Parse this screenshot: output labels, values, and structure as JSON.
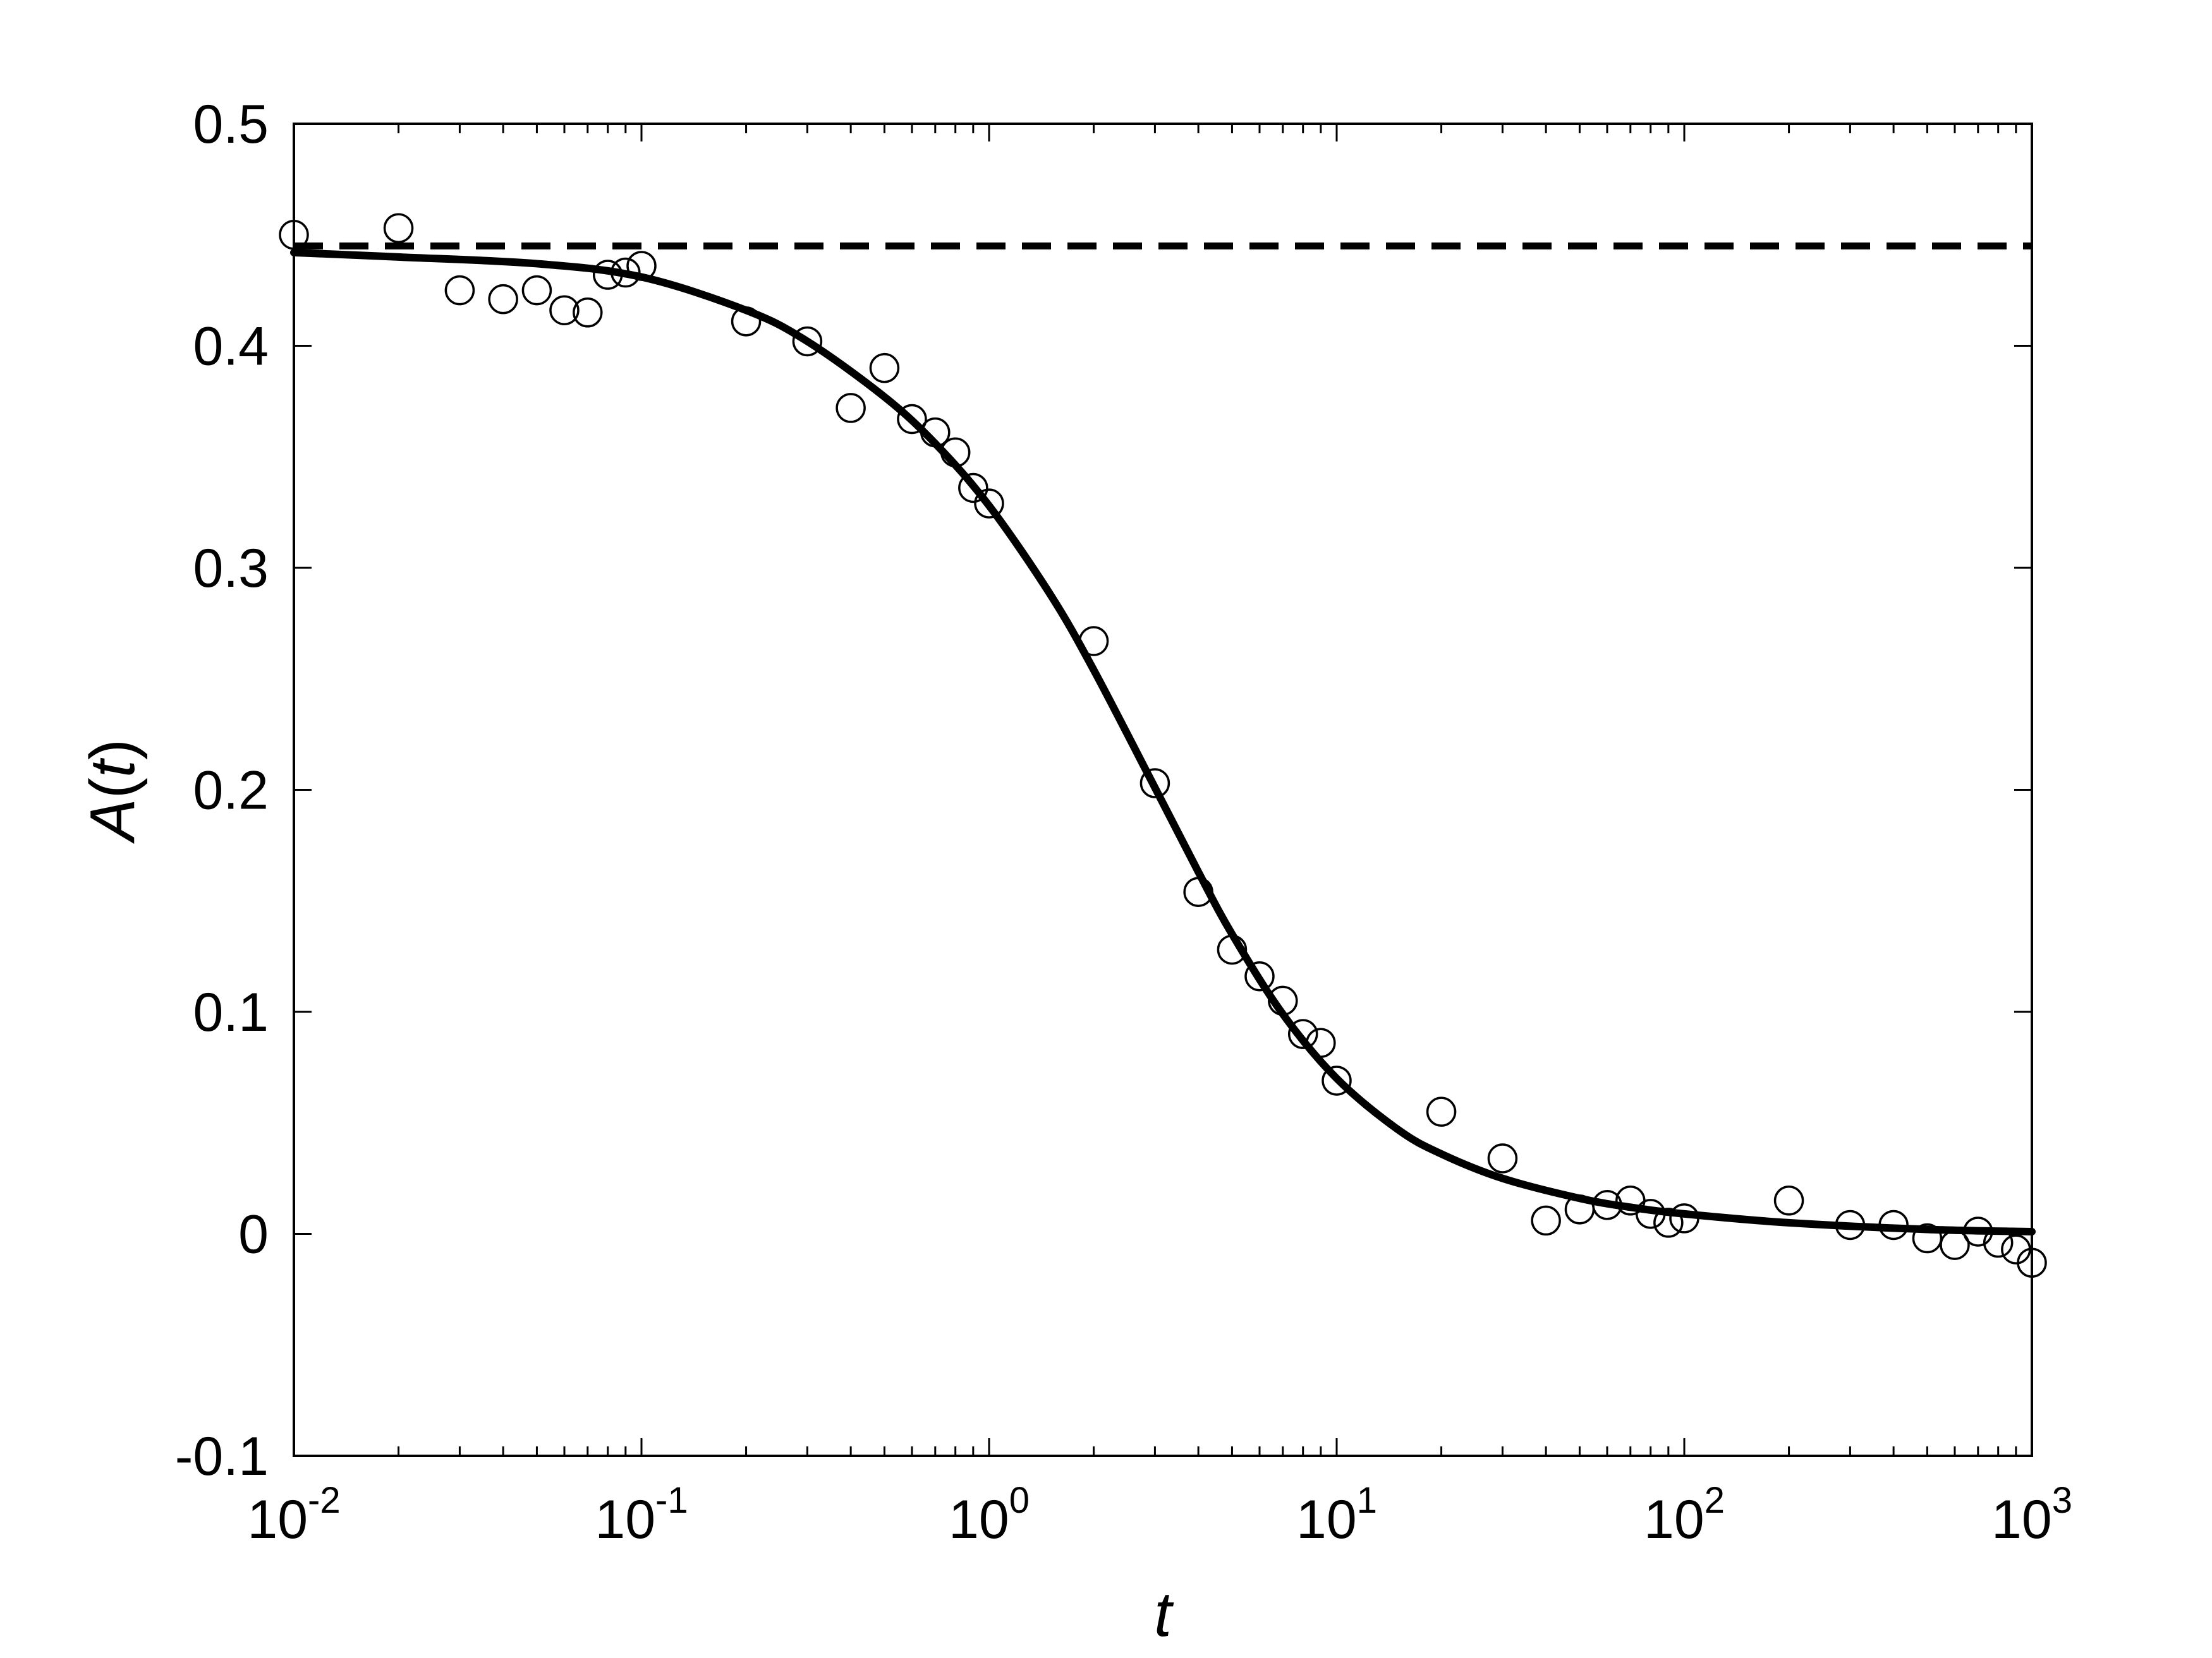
{
  "chart_data": {
    "type": "scatter",
    "title": "",
    "xlabel": "t",
    "ylabel_main": "A",
    "ylabel_paren_open": "(",
    "ylabel_var": "t",
    "ylabel_paren_close": ")",
    "x_scale": "log",
    "xlim": [
      0.01,
      1000
    ],
    "ylim": [
      -0.1,
      0.5
    ],
    "grid": false,
    "legend": "none",
    "x_ticks": [
      {
        "base": "10",
        "exp": "-2",
        "value": 0.01
      },
      {
        "base": "10",
        "exp": "-1",
        "value": 0.1
      },
      {
        "base": "10",
        "exp": "0",
        "value": 1
      },
      {
        "base": "10",
        "exp": "1",
        "value": 10
      },
      {
        "base": "10",
        "exp": "2",
        "value": 100
      },
      {
        "base": "10",
        "exp": "3",
        "value": 1000
      }
    ],
    "y_ticks": [
      {
        "label": "-0.1",
        "value": -0.1
      },
      {
        "label": "0",
        "value": 0
      },
      {
        "label": "0.1",
        "value": 0.1
      },
      {
        "label": "0.2",
        "value": 0.2
      },
      {
        "label": "0.3",
        "value": 0.3
      },
      {
        "label": "0.4",
        "value": 0.4
      },
      {
        "label": "0.5",
        "value": 0.5
      }
    ],
    "series": [
      {
        "kind": "points",
        "marker": "open-circle",
        "color": "#000000",
        "points": [
          [
            0.01,
            0.45
          ],
          [
            0.02,
            0.453
          ],
          [
            0.03,
            0.425
          ],
          [
            0.04,
            0.421
          ],
          [
            0.05,
            0.425
          ],
          [
            0.06,
            0.416
          ],
          [
            0.07,
            0.415
          ],
          [
            0.08,
            0.432
          ],
          [
            0.09,
            0.433
          ],
          [
            0.1,
            0.436
          ],
          [
            0.2,
            0.411
          ],
          [
            0.3,
            0.402
          ],
          [
            0.4,
            0.372
          ],
          [
            0.5,
            0.39
          ],
          [
            0.6,
            0.367
          ],
          [
            0.7,
            0.361
          ],
          [
            0.8,
            0.352
          ],
          [
            0.9,
            0.336
          ],
          [
            1.0,
            0.329
          ],
          [
            2.0,
            0.267
          ],
          [
            3.0,
            0.203
          ],
          [
            4.0,
            0.154
          ],
          [
            5.0,
            0.128
          ],
          [
            6.0,
            0.116
          ],
          [
            7.0,
            0.105
          ],
          [
            8.0,
            0.09
          ],
          [
            9.0,
            0.086
          ],
          [
            10.0,
            0.069
          ],
          [
            20.0,
            0.055
          ],
          [
            30.0,
            0.034
          ],
          [
            40.0,
            0.006
          ],
          [
            50.0,
            0.011
          ],
          [
            60.0,
            0.013
          ],
          [
            70.0,
            0.015
          ],
          [
            80.0,
            0.009
          ],
          [
            90.0,
            0.005
          ],
          [
            100.0,
            0.007
          ],
          [
            200.0,
            0.015
          ],
          [
            300.0,
            0.004
          ],
          [
            400.0,
            0.004
          ],
          [
            500.0,
            -0.002
          ],
          [
            600.0,
            -0.005
          ],
          [
            700.0,
            0.001
          ],
          [
            800.0,
            -0.004
          ],
          [
            900.0,
            -0.007
          ],
          [
            1000.0,
            -0.013
          ]
        ]
      },
      {
        "kind": "line",
        "style": "solid",
        "color": "#000000",
        "x": [
          0.01,
          0.02,
          0.05,
          0.1,
          0.2,
          0.3,
          0.5,
          0.7,
          1,
          1.5,
          2,
          3,
          4,
          5,
          7,
          10,
          15,
          20,
          30,
          50,
          70,
          100,
          200,
          500,
          1000
        ],
        "y": [
          0.442,
          0.44,
          0.437,
          0.431,
          0.416,
          0.402,
          0.377,
          0.356,
          0.328,
          0.288,
          0.254,
          0.201,
          0.163,
          0.135,
          0.099,
          0.07,
          0.047,
          0.036,
          0.025,
          0.016,
          0.012,
          0.009,
          0.005,
          0.002,
          0.001
        ]
      },
      {
        "kind": "line",
        "style": "dashed",
        "color": "#000000",
        "x": [
          0.01,
          1000
        ],
        "y": [
          0.445,
          0.445
        ]
      }
    ]
  }
}
